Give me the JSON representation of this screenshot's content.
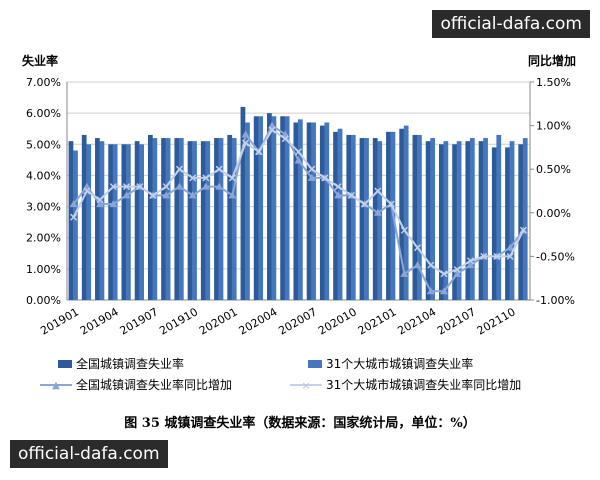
{
  "watermark": "official-dafa.com",
  "caption": "图 35 城镇调查失业率（数据来源：国家统计局，单位：%）",
  "chart_data": {
    "type": "bar",
    "left_axis_label": "失业率",
    "right_axis_label": "同比增加",
    "left_ylim": [
      0,
      7
    ],
    "right_ylim": [
      -1,
      1.5
    ],
    "left_ticks": [
      "0.00%",
      "1.00%",
      "2.00%",
      "3.00%",
      "4.00%",
      "5.00%",
      "6.00%",
      "7.00%"
    ],
    "right_ticks": [
      "-1.00%",
      "-0.50%",
      "0.00%",
      "0.50%",
      "1.00%",
      "1.50%"
    ],
    "grid": true,
    "legend": "bottom",
    "x_tick_labels": [
      "201901",
      "201904",
      "201907",
      "201910",
      "202001",
      "202004",
      "202007",
      "202010",
      "202101",
      "202104",
      "202107",
      "202110"
    ],
    "categories": [
      "201901",
      "201902",
      "201903",
      "201904",
      "201905",
      "201906",
      "201907",
      "201908",
      "201909",
      "201910",
      "201911",
      "201912",
      "202001",
      "202002",
      "202003",
      "202004",
      "202005",
      "202006",
      "202007",
      "202008",
      "202009",
      "202010",
      "202011",
      "202012",
      "202101",
      "202102",
      "202103",
      "202104",
      "202105",
      "202106",
      "202107",
      "202108",
      "202109",
      "202110",
      "202111"
    ],
    "series": [
      {
        "name": "全国城镇调查失业率",
        "type": "bar",
        "axis": "left",
        "color": "#2d5a99",
        "values": [
          5.1,
          5.3,
          5.2,
          5.0,
          5.0,
          5.1,
          5.3,
          5.2,
          5.2,
          5.1,
          5.1,
          5.2,
          5.3,
          6.2,
          5.9,
          6.0,
          5.9,
          5.7,
          5.7,
          5.6,
          5.4,
          5.3,
          5.2,
          5.2,
          5.4,
          5.5,
          5.3,
          5.1,
          5.0,
          5.0,
          5.1,
          5.1,
          4.9,
          4.9,
          5.0
        ]
      },
      {
        "name": "31个大城市城镇调查失业率",
        "type": "bar",
        "axis": "left",
        "color": "#4577bf",
        "values": [
          4.8,
          5.0,
          5.1,
          5.0,
          5.0,
          5.0,
          5.2,
          5.2,
          5.2,
          5.1,
          5.1,
          5.2,
          5.2,
          5.7,
          5.9,
          5.9,
          5.9,
          5.8,
          5.7,
          5.7,
          5.5,
          5.3,
          5.2,
          5.1,
          5.4,
          5.6,
          5.3,
          5.2,
          5.1,
          5.1,
          5.2,
          5.2,
          5.3,
          5.1,
          5.2
        ]
      },
      {
        "name": "全国城镇调查失业率同比增加",
        "type": "line",
        "marker": "triangle",
        "axis": "right",
        "color": "#8aa6d8",
        "values": [
          0.1,
          0.3,
          0.1,
          0.1,
          0.2,
          0.3,
          0.2,
          0.2,
          0.3,
          0.2,
          0.3,
          0.3,
          0.2,
          0.9,
          0.7,
          1.0,
          0.9,
          0.6,
          0.4,
          0.4,
          0.2,
          0.2,
          0.1,
          0.0,
          0.1,
          -0.7,
          -0.6,
          -0.9,
          -0.9,
          -0.7,
          -0.6,
          -0.5,
          -0.5,
          -0.4,
          -0.2
        ]
      },
      {
        "name": "31个大城市城镇调查失业率同比增加",
        "type": "line",
        "marker": "x",
        "axis": "right",
        "color": "#c3d1ea",
        "values": [
          -0.05,
          0.25,
          0.15,
          0.3,
          0.3,
          0.3,
          0.2,
          0.3,
          0.5,
          0.4,
          0.4,
          0.5,
          0.4,
          0.8,
          0.7,
          0.95,
          0.85,
          0.7,
          0.5,
          0.4,
          0.3,
          0.2,
          0.1,
          0.25,
          0.1,
          -0.2,
          -0.4,
          -0.6,
          -0.7,
          -0.65,
          -0.55,
          -0.5,
          -0.5,
          -0.5,
          -0.2
        ]
      }
    ]
  }
}
